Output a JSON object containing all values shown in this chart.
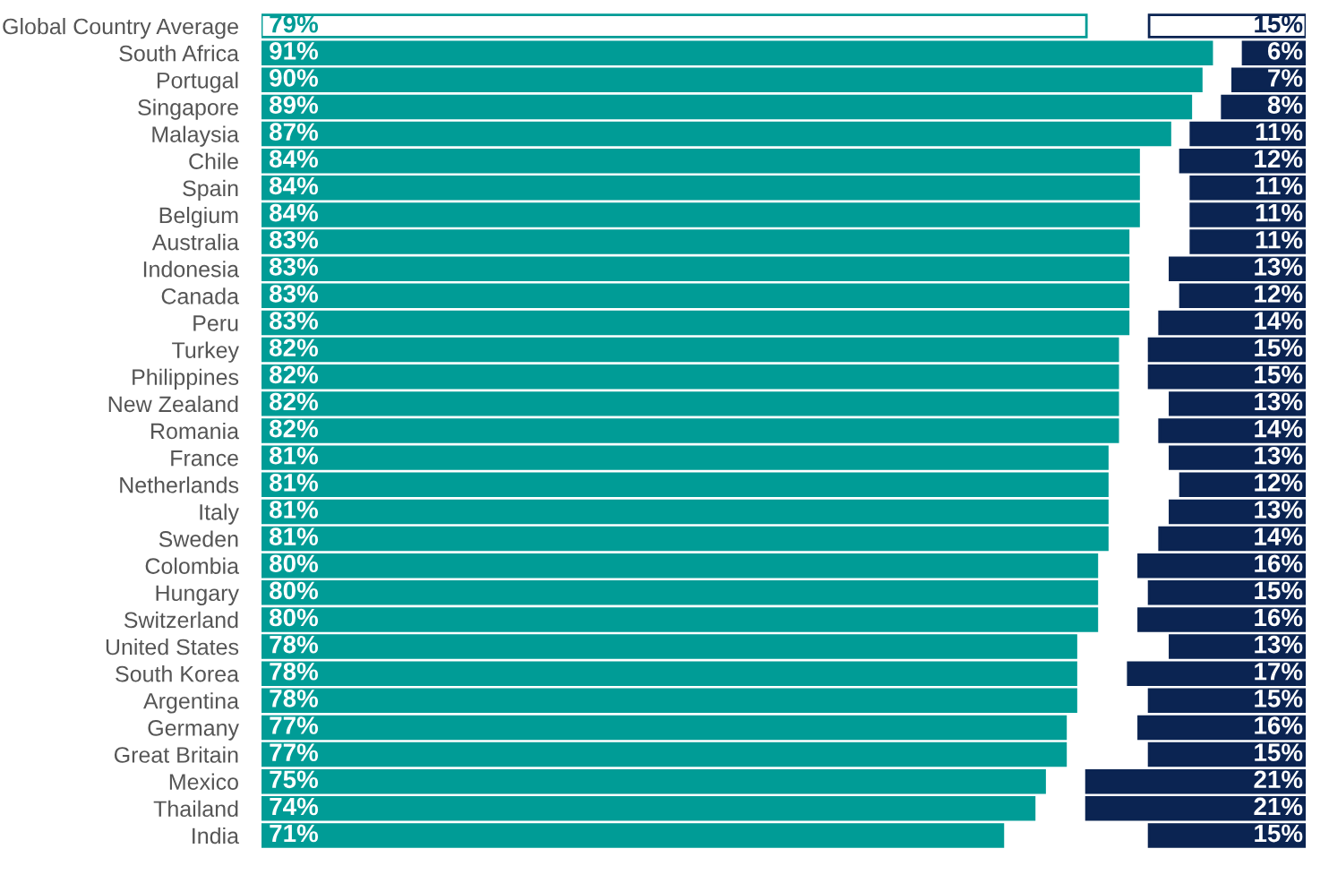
{
  "chart_data": [
    {
      "type": "bar",
      "orientation": "horizontal",
      "color": "#009c96",
      "xlim": [
        0,
        100
      ],
      "tick_labels": "y",
      "categories": [
        "Global Country Average",
        "South Africa",
        "Portugal",
        "Singapore",
        "Malaysia",
        "Chile",
        "Spain",
        "Belgium",
        "Australia",
        "Indonesia",
        "Canada",
        "Peru",
        "Turkey",
        "Philippines",
        "New Zealand",
        "Romania",
        "France",
        "Netherlands",
        "Italy",
        "Sweden",
        "Colombia",
        "Hungary",
        "Switzerland",
        "United States",
        "South Korea",
        "Argentina",
        "Germany",
        "Great Britain",
        "Mexico",
        "Thailand",
        "India"
      ],
      "values": [
        79,
        91,
        90,
        89,
        87,
        84,
        84,
        84,
        83,
        83,
        83,
        83,
        82,
        82,
        82,
        82,
        81,
        81,
        81,
        81,
        80,
        80,
        80,
        78,
        78,
        78,
        77,
        77,
        75,
        74,
        71
      ],
      "value_labels": [
        "79%",
        "91%",
        "90%",
        "89%",
        "87%",
        "84%",
        "84%",
        "84%",
        "83%",
        "83%",
        "83%",
        "83%",
        "82%",
        "82%",
        "82%",
        "82%",
        "81%",
        "81%",
        "81%",
        "81%",
        "80%",
        "80%",
        "80%",
        "78%",
        "78%",
        "78%",
        "77%",
        "77%",
        "75%",
        "74%",
        "71%"
      ],
      "colors": [
        "#ffffff",
        "#009c96",
        "#009c96",
        "#009c96",
        "#009c96",
        "#009c96",
        "#009c96",
        "#009c96",
        "#009c96",
        "#009c96",
        "#009c96",
        "#009c96",
        "#009c96",
        "#009c96",
        "#009c96",
        "#009c96",
        "#009c96",
        "#009c96",
        "#009c96",
        "#009c96",
        "#009c96",
        "#009c96",
        "#009c96",
        "#009c96",
        "#009c96",
        "#009c96",
        "#009c96",
        "#009c96",
        "#009c96",
        "#009c96",
        "#009c96"
      ]
    },
    {
      "type": "bar",
      "orientation": "horizontal",
      "color": "#0b2452",
      "tick_labels": false,
      "values": [
        15,
        6,
        7,
        8,
        11,
        12,
        11,
        11,
        11,
        13,
        12,
        14,
        15,
        15,
        13,
        14,
        13,
        12,
        13,
        14,
        16,
        15,
        16,
        13,
        17,
        15,
        16,
        15,
        21,
        21,
        15
      ],
      "value_labels": [
        "15%",
        "6%",
        "7%",
        "8%",
        "11%",
        "12%",
        "11%",
        "11%",
        "11%",
        "13%",
        "12%",
        "14%",
        "15%",
        "15%",
        "13%",
        "14%",
        "13%",
        "12%",
        "13%",
        "14%",
        "16%",
        "15%",
        "16%",
        "13%",
        "17%",
        "15%",
        "16%",
        "15%",
        "21%",
        "21%",
        "15%"
      ],
      "colors": [
        "#ffffff",
        "#0b2452",
        "#0b2452",
        "#0b2452",
        "#0b2452",
        "#0b2452",
        "#0b2452",
        "#0b2452",
        "#0b2452",
        "#0b2452",
        "#0b2452",
        "#0b2452",
        "#0b2452",
        "#0b2452",
        "#0b2452",
        "#0b2452",
        "#0b2452",
        "#0b2452",
        "#0b2452",
        "#0b2452",
        "#0b2452",
        "#0b2452",
        "#0b2452",
        "#0b2452",
        "#0b2452",
        "#0b2452",
        "#0b2452",
        "#0b2452",
        "#0b2452",
        "#0b2452",
        "#0b2452"
      ]
    }
  ]
}
